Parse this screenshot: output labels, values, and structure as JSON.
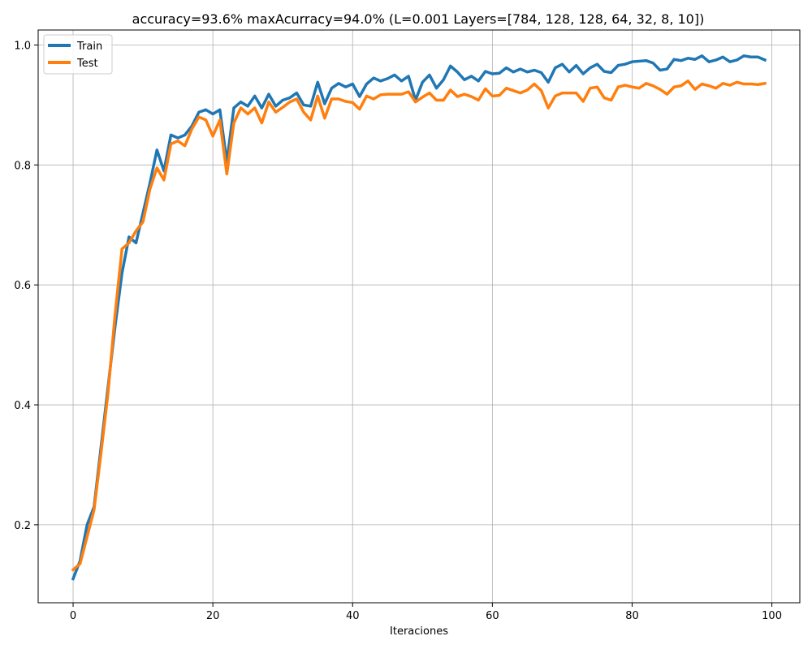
{
  "chart_data": {
    "type": "line",
    "title": "accuracy=93.6%  maxAcurracy=94.0% (L=0.001 Layers=[784, 128, 128, 64, 32, 8, 10])",
    "xlabel": "Iteraciones",
    "ylabel": "",
    "xlim": [
      -5,
      104
    ],
    "ylim": [
      0.07,
      1.025
    ],
    "xticks": [
      0,
      20,
      40,
      60,
      80,
      100
    ],
    "yticks": [
      0.2,
      0.4,
      0.6,
      0.8,
      1.0
    ],
    "xtick_labels": [
      "0",
      "20",
      "40",
      "60",
      "80",
      "100"
    ],
    "ytick_labels": [
      "0.2",
      "0.4",
      "0.6",
      "0.8",
      "1.0"
    ],
    "grid": true,
    "legend_position": "top-left",
    "series": [
      {
        "name": "Train",
        "color": "#1f77b4",
        "values": [
          0.11,
          0.14,
          0.2,
          0.23,
          0.33,
          0.43,
          0.53,
          0.62,
          0.68,
          0.67,
          0.72,
          0.77,
          0.825,
          0.79,
          0.85,
          0.845,
          0.85,
          0.865,
          0.888,
          0.892,
          0.885,
          0.892,
          0.805,
          0.895,
          0.905,
          0.898,
          0.915,
          0.895,
          0.918,
          0.898,
          0.908,
          0.912,
          0.92,
          0.9,
          0.898,
          0.938,
          0.902,
          0.928,
          0.936,
          0.93,
          0.935,
          0.914,
          0.935,
          0.945,
          0.94,
          0.944,
          0.95,
          0.94,
          0.948,
          0.908,
          0.938,
          0.95,
          0.928,
          0.942,
          0.965,
          0.955,
          0.942,
          0.948,
          0.94,
          0.956,
          0.952,
          0.953,
          0.962,
          0.955,
          0.96,
          0.955,
          0.958,
          0.954,
          0.938,
          0.962,
          0.968,
          0.955,
          0.966,
          0.952,
          0.962,
          0.968,
          0.956,
          0.954,
          0.966,
          0.968,
          0.972,
          0.973,
          0.974,
          0.97,
          0.958,
          0.96,
          0.976,
          0.974,
          0.978,
          0.976,
          0.982,
          0.972,
          0.975,
          0.98,
          0.972,
          0.975,
          0.982,
          0.98,
          0.98,
          0.975
        ]
      },
      {
        "name": "Test",
        "color": "#ff7f0e",
        "values": [
          0.125,
          0.135,
          0.18,
          0.225,
          0.32,
          0.42,
          0.55,
          0.66,
          0.67,
          0.69,
          0.705,
          0.76,
          0.795,
          0.775,
          0.835,
          0.84,
          0.832,
          0.86,
          0.88,
          0.875,
          0.848,
          0.875,
          0.785,
          0.87,
          0.895,
          0.885,
          0.895,
          0.87,
          0.905,
          0.888,
          0.896,
          0.905,
          0.91,
          0.888,
          0.875,
          0.915,
          0.878,
          0.91,
          0.91,
          0.906,
          0.904,
          0.893,
          0.915,
          0.91,
          0.917,
          0.918,
          0.918,
          0.918,
          0.922,
          0.905,
          0.913,
          0.92,
          0.908,
          0.908,
          0.925,
          0.914,
          0.918,
          0.914,
          0.908,
          0.927,
          0.915,
          0.916,
          0.928,
          0.924,
          0.92,
          0.925,
          0.935,
          0.924,
          0.895,
          0.915,
          0.92,
          0.92,
          0.92,
          0.906,
          0.928,
          0.93,
          0.912,
          0.908,
          0.93,
          0.933,
          0.93,
          0.928,
          0.936,
          0.932,
          0.926,
          0.918,
          0.93,
          0.932,
          0.94,
          0.926,
          0.935,
          0.932,
          0.928,
          0.936,
          0.933,
          0.938,
          0.935,
          0.935,
          0.934,
          0.936
        ]
      }
    ]
  }
}
